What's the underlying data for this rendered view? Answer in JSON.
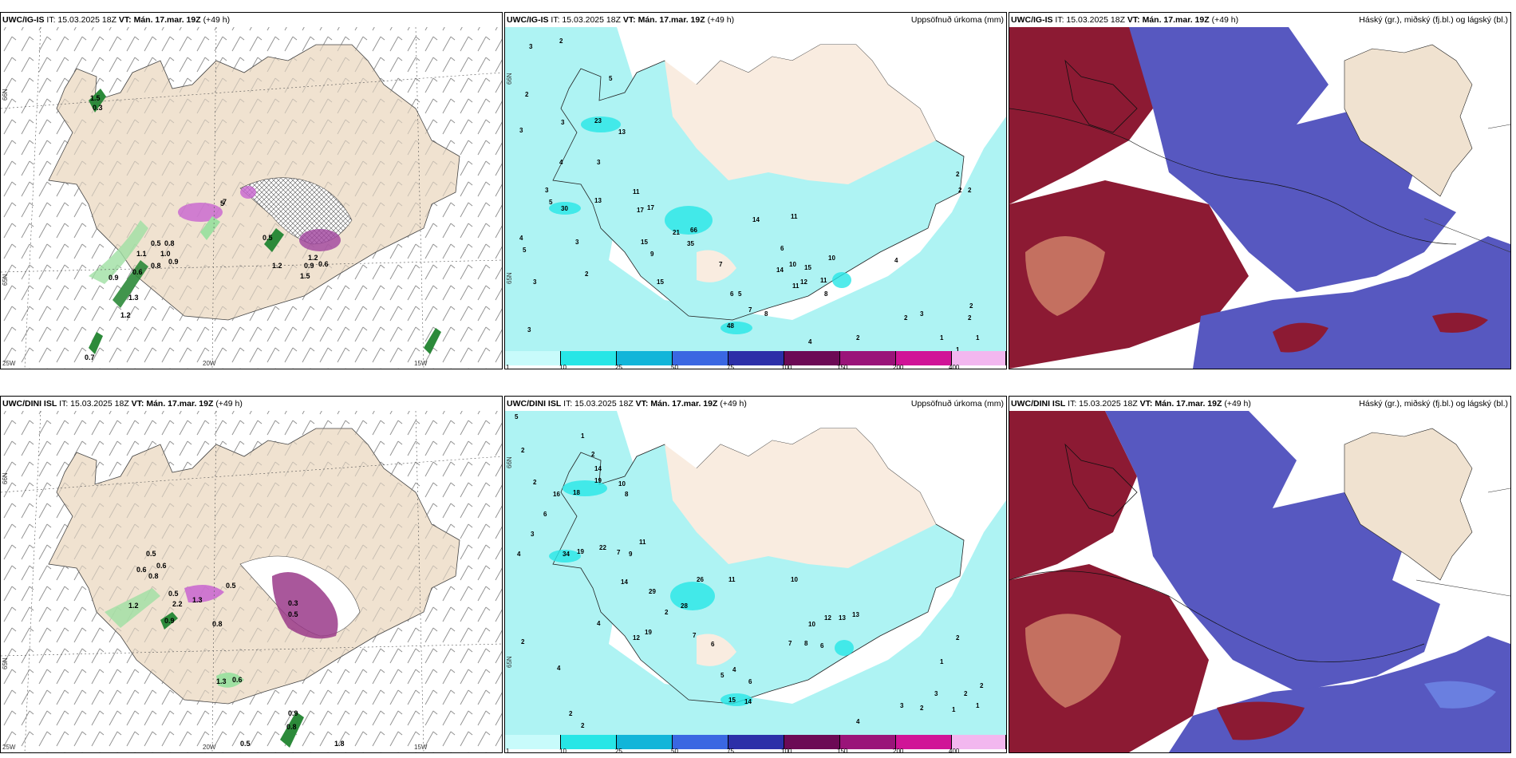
{
  "rows": [
    {
      "model": "UWC/IG-IS",
      "it_label": "IT: 15.03.2025 18Z",
      "vt_label": "VT: Mán. 17.mar. 19Z",
      "lead": "(+49 h)",
      "precip_title": "Uppsöfnuð úrkoma (mm)",
      "cloud_title": "Háský (gr.), miðský (fj.bl.) og lágský (bl.)",
      "precip_values": [
        "3",
        "2",
        "3",
        "2",
        "3",
        "5",
        "23",
        "13",
        "3",
        "4",
        "3",
        "5",
        "30",
        "13",
        "11",
        "17",
        "17",
        "4",
        "5",
        "3",
        "2",
        "15",
        "21",
        "35",
        "66",
        "14",
        "11",
        "6",
        "10",
        "15",
        "10",
        "14",
        "7",
        "9",
        "15",
        "11",
        "12",
        "11",
        "8",
        "6",
        "5",
        "7",
        "8",
        "3",
        "3",
        "48",
        "4",
        "3",
        "2",
        "2",
        "2",
        "4",
        "1",
        "1",
        "2",
        "1",
        "2",
        "3",
        "2",
        "2",
        "2"
      ],
      "wind_labels": [
        "1.5",
        "0.3",
        "5",
        "0.5",
        "1.1",
        "1.0",
        "0.8",
        "0.9",
        "0.6",
        "0.8",
        "0.9",
        "1.3",
        "1.2",
        "0.5",
        "1.2",
        "0.9",
        "1.5",
        "0.6",
        "0.7",
        "1.2",
        "7"
      ]
    },
    {
      "model": "UWC/DINI ISL",
      "it_label": "IT: 15.03.2025 18Z",
      "vt_label": "VT: Mán. 17.mar. 19Z",
      "lead": "(+49 h)",
      "precip_title": "Uppsöfnuð úrkoma (mm)",
      "cloud_title": "Háský (gr.), miðský (fj.bl.) og lágský (bl.)",
      "precip_values": [
        "5",
        "2",
        "1",
        "2",
        "2",
        "14",
        "19",
        "10",
        "16",
        "18",
        "8",
        "6",
        "3",
        "4",
        "34",
        "19",
        "22",
        "7",
        "9",
        "11",
        "14",
        "29",
        "28",
        "26",
        "11",
        "10",
        "12",
        "13",
        "13",
        "10",
        "2",
        "12",
        "19",
        "4",
        "7",
        "6",
        "7",
        "8",
        "6",
        "5",
        "4",
        "6",
        "15",
        "14",
        "2",
        "4",
        "2",
        "2",
        "3",
        "2",
        "1",
        "2",
        "1",
        "2",
        "3",
        "1",
        "4",
        "2"
      ],
      "wind_labels": [
        "0.5",
        "0.6",
        "0.6",
        "0.8",
        "0.5",
        "1.2",
        "2.2",
        "1.3",
        "0.5",
        "0.9",
        "0.8",
        "0.3",
        "0.5",
        "1.3",
        "0.6",
        "0.9",
        "0.8",
        "0.5",
        "1.8"
      ]
    }
  ],
  "lat_labels": [
    "66N",
    "65N"
  ],
  "lon_labels": [
    "25W",
    "20W",
    "15W"
  ],
  "scale": {
    "labels": [
      "1",
      "10",
      "25",
      "50",
      "75",
      "100",
      "150",
      "200",
      "400"
    ],
    "colors": [
      "#c8fbfb",
      "#27e6e6",
      "#12b5d9",
      "#3a67e2",
      "#2c2fa8",
      "#6c0a55",
      "#9a1479",
      "#d01497",
      "#ff2fc8",
      "#f2b7ef"
    ]
  },
  "colors": {
    "land": "#f0e2d0",
    "precip_light": "#aef3f3",
    "high_cloud": "#8c1a33",
    "mid_cloud": "#5758c0",
    "low_cloud": "#4a7fe0"
  }
}
